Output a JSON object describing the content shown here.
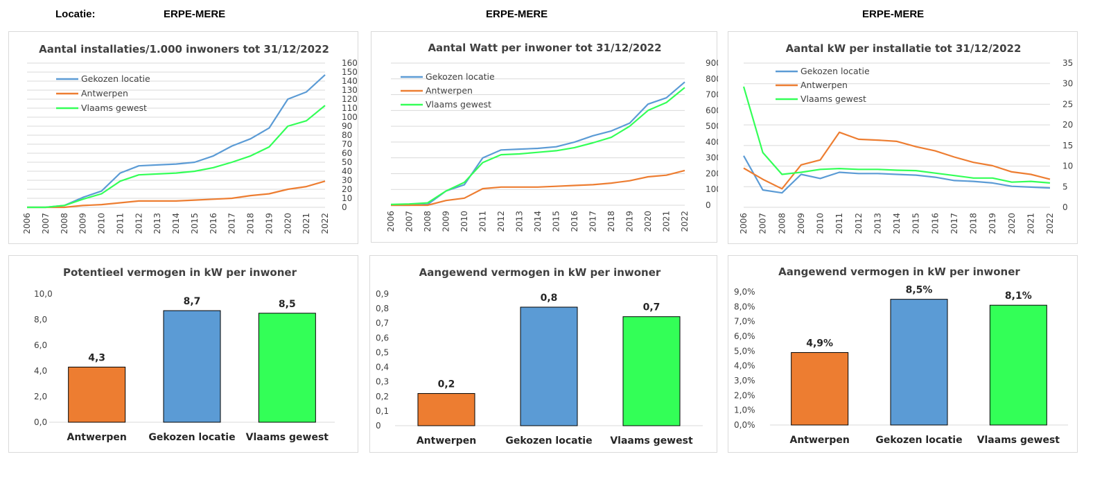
{
  "header": {
    "label": "Locatie:",
    "location_1": "ERPE-MERE",
    "location_2": "ERPE-MERE",
    "location_3": "ERPE-MERE"
  },
  "colors": {
    "gekozen": "#5b9bd5",
    "antwerpen": "#ed7d31",
    "vlaams": "#33ff57",
    "grid": "#d9d9d9",
    "bar_outline": "#000000"
  },
  "chart_data": [
    {
      "type": "line",
      "title": "Aantal installaties/1.000  inwoners tot 31/12/2022",
      "x": [
        "2006",
        "2007",
        "2008",
        "2009",
        "2010",
        "2011",
        "2012",
        "2013",
        "2014",
        "2015",
        "2016",
        "2017",
        "2018",
        "2019",
        "2020",
        "2021",
        "2022"
      ],
      "ylim": [
        0,
        160
      ],
      "yticks": [
        "0",
        "10",
        "20",
        "30",
        "40",
        "50",
        "60",
        "70",
        "80",
        "90",
        "100",
        "110",
        "120",
        "130",
        "140",
        "150",
        "160"
      ],
      "y_axis_side": "right",
      "legend_position": "top-left",
      "grid": true,
      "series": [
        {
          "name": "Gekozen locatie",
          "color_key": "gekozen",
          "values": [
            0,
            0,
            2,
            11,
            18,
            38,
            46,
            47,
            48,
            50,
            57,
            68,
            76,
            88,
            120,
            128,
            147
          ]
        },
        {
          "name": "Antwerpen",
          "color_key": "antwerpen",
          "values": [
            0,
            0,
            0,
            2,
            3,
            5,
            7,
            7,
            7,
            8,
            9,
            10,
            13,
            15,
            20,
            23,
            29
          ]
        },
        {
          "name": "Vlaams gewest",
          "color_key": "vlaams",
          "values": [
            0,
            0,
            2,
            9,
            15,
            29,
            36,
            37,
            38,
            40,
            44,
            50,
            57,
            67,
            90,
            96,
            113
          ]
        }
      ]
    },
    {
      "type": "line",
      "title": "Aantal Watt per inwoner tot 31/12/2022",
      "x": [
        "2006",
        "2007",
        "2008",
        "2009",
        "2010",
        "2011",
        "2012",
        "2013",
        "2014",
        "2015",
        "2016",
        "2017",
        "2018",
        "2019",
        "2020",
        "2021",
        "2022"
      ],
      "ylim": [
        0,
        900
      ],
      "yticks": [
        "0",
        "100",
        "200",
        "300",
        "400",
        "500",
        "600",
        "700",
        "800",
        "900"
      ],
      "y_axis_side": "right",
      "legend_position": "top-left",
      "grid": true,
      "series": [
        {
          "name": "Gekozen locatie",
          "color_key": "gekozen",
          "values": [
            0,
            0,
            5,
            90,
            130,
            300,
            350,
            355,
            360,
            370,
            400,
            440,
            470,
            520,
            640,
            680,
            780
          ]
        },
        {
          "name": "Antwerpen",
          "color_key": "antwerpen",
          "values": [
            0,
            0,
            0,
            30,
            45,
            105,
            115,
            115,
            115,
            120,
            125,
            130,
            140,
            155,
            180,
            190,
            220
          ]
        },
        {
          "name": "Vlaams gewest",
          "color_key": "vlaams",
          "values": [
            5,
            8,
            15,
            90,
            145,
            270,
            320,
            325,
            335,
            345,
            365,
            395,
            430,
            500,
            600,
            650,
            745
          ]
        }
      ]
    },
    {
      "type": "line",
      "title": "Aantal kW per installatie  tot 31/12/2022",
      "x": [
        "2006",
        "2007",
        "2008",
        "2009",
        "2010",
        "2011",
        "2012",
        "2013",
        "2014",
        "2015",
        "2016",
        "2017",
        "2018",
        "2019",
        "2020",
        "2021",
        "2022"
      ],
      "ylim": [
        0,
        35
      ],
      "yticks": [
        "0",
        "5",
        "10",
        "15",
        "20",
        "25",
        "30",
        "35"
      ],
      "y_axis_side": "right",
      "legend_position": "top-left",
      "grid": true,
      "series": [
        {
          "name": "Gekozen locatie",
          "color_key": "gekozen",
          "values": [
            12.5,
            4.2,
            3.5,
            8,
            7,
            8.5,
            8.2,
            8.2,
            8,
            7.8,
            7.3,
            6.5,
            6.3,
            5.9,
            5.1,
            4.9,
            4.7
          ]
        },
        {
          "name": "Antwerpen",
          "color_key": "antwerpen",
          "values": [
            9.5,
            6.8,
            4.5,
            10.3,
            11.5,
            18.2,
            16.5,
            16.3,
            16,
            14.7,
            13.7,
            12.2,
            10.9,
            10.1,
            8.6,
            8,
            6.8
          ]
        },
        {
          "name": "Vlaams gewest",
          "color_key": "vlaams",
          "values": [
            29.3,
            13.3,
            8,
            8.5,
            9.2,
            9.4,
            9.2,
            9.2,
            9,
            8.9,
            8.3,
            7.7,
            7.1,
            7.1,
            6.1,
            6.3,
            5.9
          ]
        }
      ]
    },
    {
      "type": "bar",
      "title": "Potentieel vermogen in kW per inwoner",
      "categories": [
        "Antwerpen",
        "Gekozen locatie",
        "Vlaams gewest"
      ],
      "values": [
        4.3,
        8.7,
        8.5
      ],
      "value_labels": [
        "4,3",
        "8,7",
        "8,5"
      ],
      "color_keys": [
        "antwerpen",
        "gekozen",
        "vlaams"
      ],
      "ylim": [
        0,
        10
      ],
      "yticks": [
        "0,0",
        "2,0",
        "4,0",
        "6,0",
        "8,0",
        "10,0"
      ],
      "grid": false
    },
    {
      "type": "bar",
      "title": "Aangewend vermogen in kW per inwoner",
      "categories": [
        "Antwerpen",
        "Gekozen locatie",
        "Vlaams gewest"
      ],
      "values": [
        0.22,
        0.81,
        0.745
      ],
      "value_labels": [
        "0,2",
        "0,8",
        "0,7"
      ],
      "color_keys": [
        "antwerpen",
        "gekozen",
        "vlaams"
      ],
      "ylim": [
        0,
        0.9
      ],
      "yticks": [
        "0",
        "0,1",
        "0,2",
        "0,3",
        "0,4",
        "0,5",
        "0,6",
        "0,7",
        "0,8",
        "0,9"
      ],
      "grid": false
    },
    {
      "type": "bar",
      "title": "Aangewend vermogen in kW per inwoner",
      "categories": [
        "Antwerpen",
        "Gekozen locatie",
        "Vlaams gewest"
      ],
      "values": [
        4.9,
        8.5,
        8.1
      ],
      "value_labels": [
        "4,9%",
        "8,5%",
        "8,1%"
      ],
      "color_keys": [
        "antwerpen",
        "gekozen",
        "vlaams"
      ],
      "ylim": [
        0,
        9
      ],
      "yticks": [
        "0,0%",
        "1,0%",
        "2,0%",
        "3,0%",
        "4,0%",
        "5,0%",
        "6,0%",
        "7,0%",
        "8,0%",
        "9,0%"
      ],
      "grid": false
    }
  ]
}
